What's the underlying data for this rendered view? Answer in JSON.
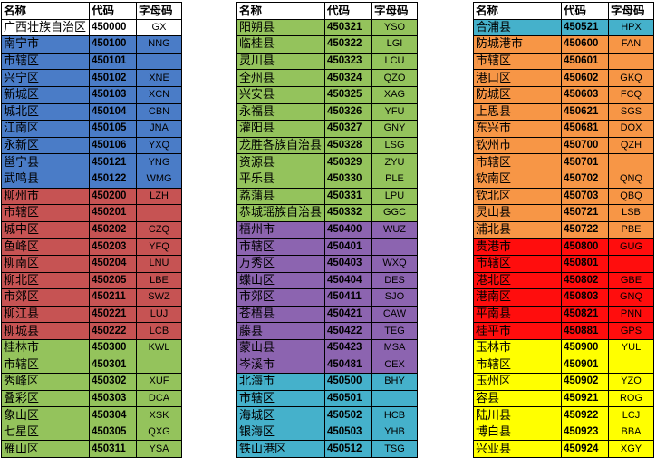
{
  "headers": {
    "name": "名称",
    "code": "代码",
    "abbr": "字母码"
  },
  "colors": {
    "white": "#ffffff",
    "blue": "#4a7cc7",
    "red": "#c65353",
    "green": "#94c35c",
    "purple": "#8c64b0",
    "teal": "#45b1cb",
    "orange": "#f79646",
    "brightred": "#ff0d0d",
    "yellow": "#ffff00"
  },
  "tables": [
    [
      {
        "name": "广西壮族自治区",
        "code": "450000",
        "abbr": "GX",
        "color": "white"
      },
      {
        "name": "南宁市",
        "code": "450100",
        "abbr": "NNG",
        "color": "blue"
      },
      {
        "name": "市辖区",
        "code": "450101",
        "abbr": "",
        "color": "blue"
      },
      {
        "name": "兴宁区",
        "code": "450102",
        "abbr": "XNE",
        "color": "blue"
      },
      {
        "name": "新城区",
        "code": "450103",
        "abbr": "XCN",
        "color": "blue"
      },
      {
        "name": "城北区",
        "code": "450104",
        "abbr": "CBN",
        "color": "blue"
      },
      {
        "name": "江南区",
        "code": "450105",
        "abbr": "JNA",
        "color": "blue"
      },
      {
        "name": "永新区",
        "code": "450106",
        "abbr": "YXQ",
        "color": "blue"
      },
      {
        "name": "邕宁县",
        "code": "450121",
        "abbr": "YNG",
        "color": "blue"
      },
      {
        "name": "武鸣县",
        "code": "450122",
        "abbr": "WMG",
        "color": "blue"
      },
      {
        "name": "柳州市",
        "code": "450200",
        "abbr": "LZH",
        "color": "red"
      },
      {
        "name": "市辖区",
        "code": "450201",
        "abbr": "",
        "color": "red"
      },
      {
        "name": "城中区",
        "code": "450202",
        "abbr": "CZQ",
        "color": "red"
      },
      {
        "name": "鱼峰区",
        "code": "450203",
        "abbr": "YFQ",
        "color": "red"
      },
      {
        "name": "柳南区",
        "code": "450204",
        "abbr": "LNU",
        "color": "red"
      },
      {
        "name": "柳北区",
        "code": "450205",
        "abbr": "LBE",
        "color": "red"
      },
      {
        "name": "市郊区",
        "code": "450211",
        "abbr": "SWZ",
        "color": "red"
      },
      {
        "name": "柳江县",
        "code": "450221",
        "abbr": "LUJ",
        "color": "red"
      },
      {
        "name": "柳城县",
        "code": "450222",
        "abbr": "LCB",
        "color": "red"
      },
      {
        "name": "桂林市",
        "code": "450300",
        "abbr": "KWL",
        "color": "green"
      },
      {
        "name": "市辖区",
        "code": "450301",
        "abbr": "",
        "color": "green"
      },
      {
        "name": "秀峰区",
        "code": "450302",
        "abbr": "XUF",
        "color": "green"
      },
      {
        "name": "叠彩区",
        "code": "450303",
        "abbr": "DCA",
        "color": "green"
      },
      {
        "name": "象山区",
        "code": "450304",
        "abbr": "XSK",
        "color": "green"
      },
      {
        "name": "七星区",
        "code": "450305",
        "abbr": "QXG",
        "color": "green"
      },
      {
        "name": "雁山区",
        "code": "450311",
        "abbr": "YSA",
        "color": "green"
      }
    ],
    [
      {
        "name": "阳朔县",
        "code": "450321",
        "abbr": "YSO",
        "color": "green"
      },
      {
        "name": "临桂县",
        "code": "450322",
        "abbr": "LGI",
        "color": "green"
      },
      {
        "name": "灵川县",
        "code": "450323",
        "abbr": "LCU",
        "color": "green"
      },
      {
        "name": "全州县",
        "code": "450324",
        "abbr": "QZO",
        "color": "green"
      },
      {
        "name": "兴安县",
        "code": "450325",
        "abbr": "XAG",
        "color": "green"
      },
      {
        "name": "永福县",
        "code": "450326",
        "abbr": "YFU",
        "color": "green"
      },
      {
        "name": "灌阳县",
        "code": "450327",
        "abbr": "GNY",
        "color": "green"
      },
      {
        "name": "龙胜各族自治县",
        "code": "450328",
        "abbr": "LSG",
        "color": "green"
      },
      {
        "name": "资源县",
        "code": "450329",
        "abbr": "ZYU",
        "color": "green"
      },
      {
        "name": "平乐县",
        "code": "450330",
        "abbr": "PLE",
        "color": "green"
      },
      {
        "name": "荔蒲县",
        "code": "450331",
        "abbr": "LPU",
        "color": "green"
      },
      {
        "name": "恭城瑶族自治县",
        "code": "450332",
        "abbr": "GGC",
        "color": "green"
      },
      {
        "name": "梧州市",
        "code": "450400",
        "abbr": "WUZ",
        "color": "purple"
      },
      {
        "name": "市辖区",
        "code": "450401",
        "abbr": "",
        "color": "purple"
      },
      {
        "name": "万秀区",
        "code": "450403",
        "abbr": "WXQ",
        "color": "purple"
      },
      {
        "name": "蝶山区",
        "code": "450404",
        "abbr": "DES",
        "color": "purple"
      },
      {
        "name": "市郊区",
        "code": "450411",
        "abbr": "SJO",
        "color": "purple"
      },
      {
        "name": "苍梧县",
        "code": "450421",
        "abbr": "CAW",
        "color": "purple"
      },
      {
        "name": "藤县",
        "code": "450422",
        "abbr": "TEG",
        "color": "purple"
      },
      {
        "name": "蒙山县",
        "code": "450423",
        "abbr": "MSA",
        "color": "purple"
      },
      {
        "name": "岑溪市",
        "code": "450481",
        "abbr": "CEX",
        "color": "purple"
      },
      {
        "name": "北海市",
        "code": "450500",
        "abbr": "BHY",
        "color": "teal"
      },
      {
        "name": "市辖区",
        "code": "450501",
        "abbr": "",
        "color": "teal"
      },
      {
        "name": "海城区",
        "code": "450502",
        "abbr": "HCB",
        "color": "teal"
      },
      {
        "name": "银海区",
        "code": "450503",
        "abbr": "YHB",
        "color": "teal"
      },
      {
        "name": "铁山港区",
        "code": "450512",
        "abbr": "TSG",
        "color": "teal"
      }
    ],
    [
      {
        "name": "合浦县",
        "code": "450521",
        "abbr": "HPX",
        "color": "teal"
      },
      {
        "name": "防城港市",
        "code": "450600",
        "abbr": "FAN",
        "color": "orange"
      },
      {
        "name": "市辖区",
        "code": "450601",
        "abbr": "",
        "color": "orange"
      },
      {
        "name": "港口区",
        "code": "450602",
        "abbr": "GKQ",
        "color": "orange"
      },
      {
        "name": "防城区",
        "code": "450603",
        "abbr": "FCQ",
        "color": "orange"
      },
      {
        "name": "上思县",
        "code": "450621",
        "abbr": "SGS",
        "color": "orange"
      },
      {
        "name": "东兴市",
        "code": "450681",
        "abbr": "DOX",
        "color": "orange"
      },
      {
        "name": "钦州市",
        "code": "450700",
        "abbr": "QZH",
        "color": "orange"
      },
      {
        "name": "市辖区",
        "code": "450701",
        "abbr": "",
        "color": "orange"
      },
      {
        "name": "钦南区",
        "code": "450702",
        "abbr": "QNQ",
        "color": "orange"
      },
      {
        "name": "钦北区",
        "code": "450703",
        "abbr": "QBQ",
        "color": "orange"
      },
      {
        "name": "灵山县",
        "code": "450721",
        "abbr": "LSB",
        "color": "orange"
      },
      {
        "name": "浦北县",
        "code": "450722",
        "abbr": "PBE",
        "color": "orange"
      },
      {
        "name": "贵港市",
        "code": "450800",
        "abbr": "GUG",
        "color": "brightred"
      },
      {
        "name": "市辖区",
        "code": "450801",
        "abbr": "",
        "color": "brightred"
      },
      {
        "name": "港北区",
        "code": "450802",
        "abbr": "GBE",
        "color": "brightred"
      },
      {
        "name": "港南区",
        "code": "450803",
        "abbr": "GNQ",
        "color": "brightred"
      },
      {
        "name": "平南县",
        "code": "450821",
        "abbr": "PNN",
        "color": "brightred"
      },
      {
        "name": "桂平市",
        "code": "450881",
        "abbr": "GPS",
        "color": "brightred"
      },
      {
        "name": "玉林市",
        "code": "450900",
        "abbr": "YUL",
        "color": "yellow"
      },
      {
        "name": "市辖区",
        "code": "450901",
        "abbr": "",
        "color": "yellow"
      },
      {
        "name": "玉州区",
        "code": "450902",
        "abbr": "YZO",
        "color": "yellow"
      },
      {
        "name": "容县",
        "code": "450921",
        "abbr": "ROG",
        "color": "yellow"
      },
      {
        "name": "陆川县",
        "code": "450922",
        "abbr": "LCJ",
        "color": "yellow"
      },
      {
        "name": "博白县",
        "code": "450923",
        "abbr": "BBA",
        "color": "yellow"
      },
      {
        "name": "兴业县",
        "code": "450924",
        "abbr": "XGY",
        "color": "yellow"
      }
    ]
  ]
}
